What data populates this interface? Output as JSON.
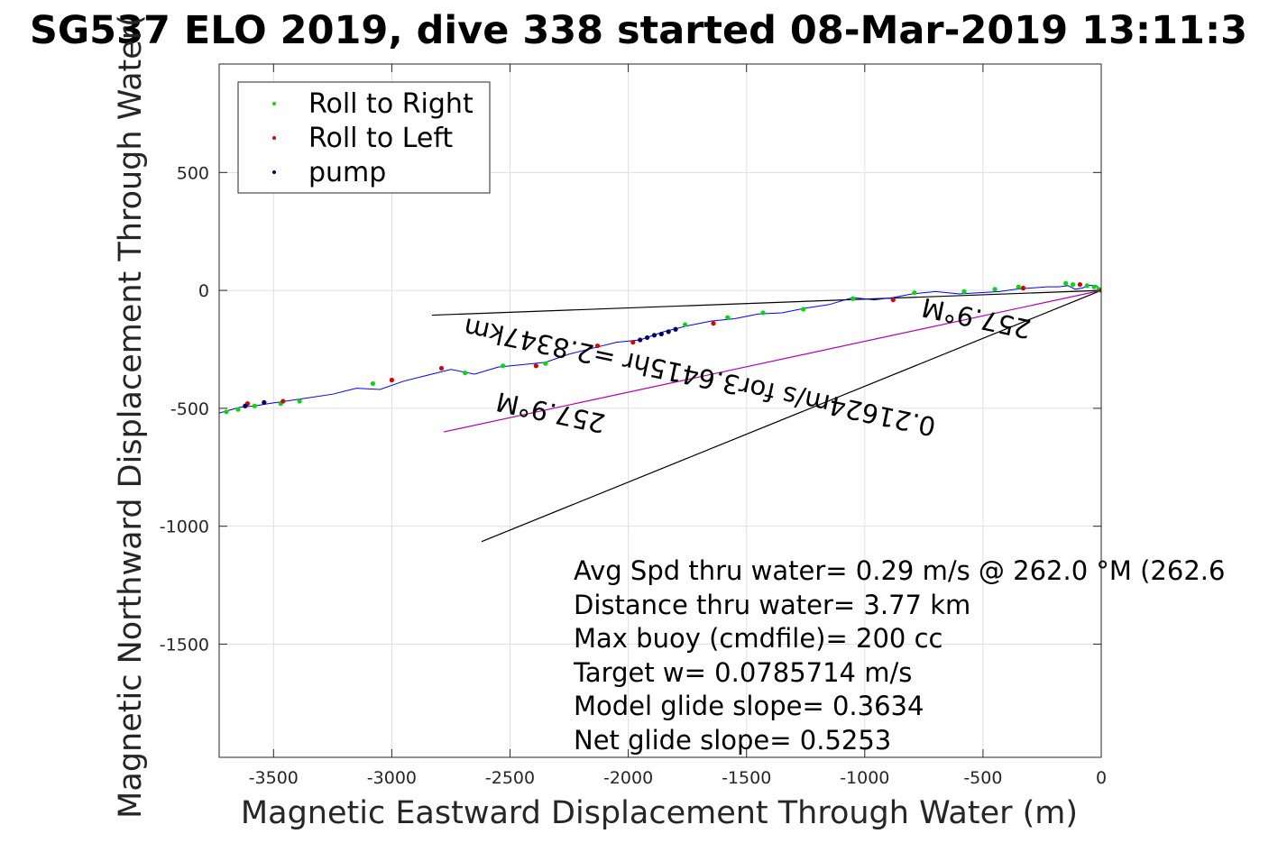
{
  "chart_data": {
    "type": "line",
    "title": "SG537 ELO 2019, dive 338 started 08-Mar-2019 13:11:3",
    "xlabel": "Magnetic Eastward Displacement Through Water (m)",
    "ylabel": "Magnetic Northward Displacement Through Water(",
    "xlim": [
      -3730,
      0
    ],
    "ylim": [
      -1980,
      960
    ],
    "xticks": [
      -3500,
      -3000,
      -2500,
      -2000,
      -1500,
      -1000,
      -500,
      0
    ],
    "yticks": [
      500,
      0,
      -500,
      -1000,
      -1500
    ],
    "grid": true,
    "legend_position": "top-left",
    "legend": [
      {
        "label": "Roll to Right",
        "color": "#00dd00"
      },
      {
        "label": "Roll to Left",
        "color": "#dd0000"
      },
      {
        "label": "pump",
        "color": "#000060"
      }
    ],
    "track": {
      "color": "#0000ff",
      "x": [
        0,
        -20,
        -50,
        -80,
        -110,
        -140,
        -180,
        -230,
        -300,
        -360,
        -430,
        -520,
        -600,
        -700,
        -800,
        -880,
        -960,
        -1050,
        -1150,
        -1250,
        -1350,
        -1450,
        -1550,
        -1650,
        -1750,
        -1850,
        -1950,
        -2050,
        -2150,
        -2250,
        -2350,
        -2450,
        -2550,
        -2650,
        -2750,
        -2850,
        -2950,
        -3050,
        -3150,
        -3250,
        -3350,
        -3450,
        -3520,
        -3580,
        -3640,
        -3730
      ],
      "y": [
        0,
        20,
        22,
        10,
        5,
        20,
        15,
        15,
        10,
        5,
        -5,
        -10,
        -15,
        -5,
        -15,
        -30,
        -40,
        -30,
        -60,
        -75,
        -95,
        -100,
        -120,
        -130,
        -150,
        -175,
        -210,
        -220,
        -245,
        -270,
        -305,
        -315,
        -325,
        -355,
        -335,
        -360,
        -385,
        -420,
        -415,
        -440,
        -455,
        -470,
        -480,
        -490,
        -495,
        -520
      ]
    },
    "roll_right_points": {
      "x": [
        -10,
        -30,
        -60,
        -120,
        -150,
        -350,
        -450,
        -580,
        -790,
        -1050,
        -1260,
        -1430,
        -1580,
        -1760,
        -2350,
        -2530,
        -2690,
        -3080,
        -3390,
        -3470,
        -3580,
        -3650,
        -3700
      ],
      "y": [
        5,
        15,
        20,
        25,
        30,
        15,
        5,
        -5,
        -10,
        -35,
        -80,
        -95,
        -115,
        -145,
        -310,
        -320,
        -350,
        -395,
        -470,
        -480,
        -490,
        -505,
        -515
      ]
    },
    "roll_left_points": {
      "x": [
        0,
        -90,
        -330,
        -880,
        -1640,
        -1980,
        -2130,
        -2390,
        -2790,
        -3000,
        -3460,
        -3610
      ],
      "y": [
        0,
        25,
        10,
        -40,
        -140,
        -220,
        -235,
        -320,
        -330,
        -380,
        -470,
        -480
      ]
    },
    "pump_points": {
      "x": [
        -1800,
        -1830,
        -1860,
        -1890,
        -1920,
        -1950,
        -3540,
        -3620
      ],
      "y": [
        -165,
        -175,
        -185,
        -190,
        -200,
        -210,
        -475,
        -490
      ]
    },
    "reference_lines": [
      {
        "color": "#000000",
        "x": [
          0,
          -2830
        ],
        "y": [
          0,
          -105
        ]
      },
      {
        "color": "#000000",
        "x": [
          0,
          -2620
        ],
        "y": [
          0,
          -1065
        ]
      },
      {
        "color": "#b000b0",
        "x": [
          0,
          -2780
        ],
        "y": [
          0,
          -600
        ]
      }
    ],
    "annotations": [
      {
        "text": "257.9°M",
        "x": -520,
        "y": -80,
        "rotation": 192,
        "color": "#000000"
      },
      {
        "text": "0.21624m/s for3.6415hr =2.8347km",
        "x": -1690,
        "y": -330,
        "rotation": 192,
        "color": "#000000"
      },
      {
        "text": "257.9°M",
        "x": -2320,
        "y": -480,
        "rotation": 192,
        "color": "#000000"
      }
    ],
    "notes": [
      "Avg Spd thru water=  0.29 m/s @ 262.0 °M (262.6",
      "Distance thru water=  3.77 km",
      "Max buoy (cmdfile)= 200 cc",
      "Target w= 0.0785714 m/s",
      "Model glide slope= 0.3634",
      "Net glide slope= 0.5253"
    ]
  }
}
